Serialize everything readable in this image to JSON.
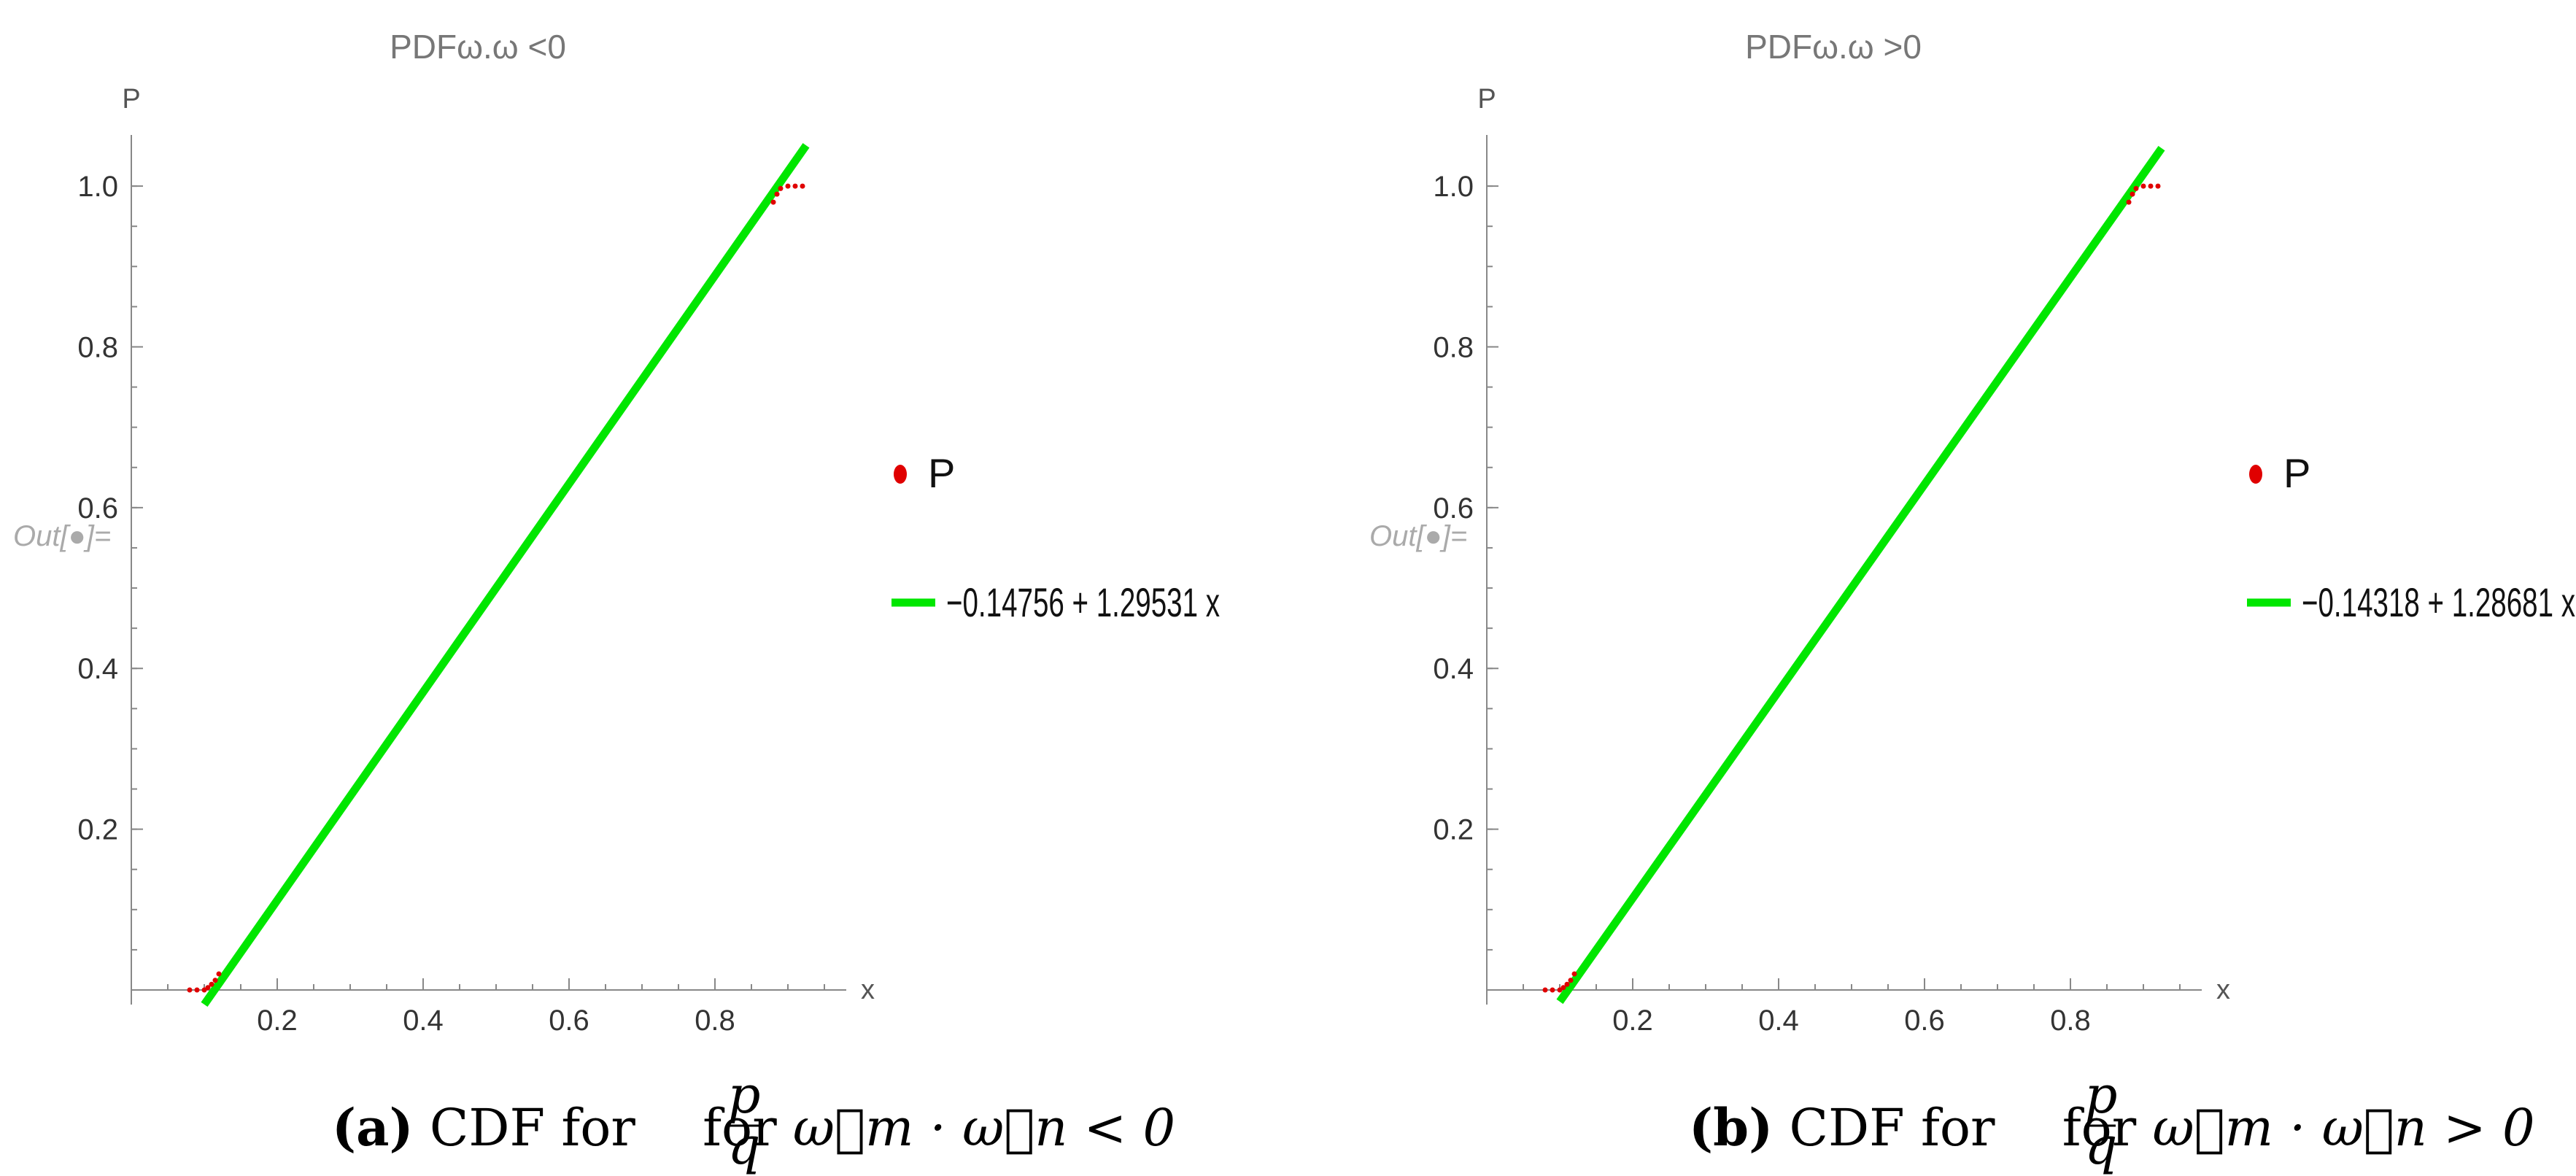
{
  "colors": {
    "points": "#e00000",
    "fit_line": "#00e600",
    "axis": "#888888"
  },
  "chart_data": [
    {
      "type": "line",
      "title": "PDFω.ω <0",
      "ylabel": "P",
      "xlabel": "x",
      "out_label": "Out[●]=",
      "xlim": [
        0.0,
        0.97
      ],
      "ylim": [
        0.0,
        1.05
      ],
      "x_ticks": [
        {
          "value": 0.2,
          "label": "0.2"
        },
        {
          "value": 0.4,
          "label": "0.4"
        },
        {
          "value": 0.6,
          "label": "0.6"
        },
        {
          "value": 0.8,
          "label": "0.8"
        }
      ],
      "y_ticks": [
        {
          "value": 0.2,
          "label": "0.2"
        },
        {
          "value": 0.4,
          "label": "0.4"
        },
        {
          "value": 0.6,
          "label": "0.6"
        },
        {
          "value": 0.8,
          "label": "0.8"
        },
        {
          "value": 1.0,
          "label": "1.0"
        }
      ],
      "series": [
        {
          "name": "P",
          "kind": "points",
          "color": "#e00000",
          "x": [
            0.08,
            0.09,
            0.1,
            0.105,
            0.11,
            0.115,
            0.12,
            0.88,
            0.885,
            0.89,
            0.9,
            0.91,
            0.92
          ],
          "y": [
            0.0,
            0.0,
            0.0,
            0.003,
            0.007,
            0.012,
            0.02,
            0.98,
            0.99,
            0.997,
            1.0,
            1.0,
            1.0
          ]
        },
        {
          "name": "-0.14756 + 1.29531 x",
          "kind": "line",
          "color": "#00e600",
          "intercept": -0.14756,
          "slope": 1.29531,
          "x_range": [
            0.1,
            0.925
          ]
        }
      ]
    },
    {
      "type": "line",
      "title": "PDFω.ω >0",
      "ylabel": "P",
      "xlabel": "x",
      "out_label": "Out[●]=",
      "xlim": [
        0.0,
        0.97
      ],
      "ylim": [
        0.0,
        1.05
      ],
      "x_ticks": [
        {
          "value": 0.2,
          "label": "0.2"
        },
        {
          "value": 0.4,
          "label": "0.4"
        },
        {
          "value": 0.6,
          "label": "0.6"
        },
        {
          "value": 0.8,
          "label": "0.8"
        }
      ],
      "y_ticks": [
        {
          "value": 0.2,
          "label": "0.2"
        },
        {
          "value": 0.4,
          "label": "0.4"
        },
        {
          "value": 0.6,
          "label": "0.6"
        },
        {
          "value": 0.8,
          "label": "0.8"
        },
        {
          "value": 1.0,
          "label": "1.0"
        }
      ],
      "series": [
        {
          "name": "P",
          "kind": "points",
          "color": "#e00000",
          "x": [
            0.08,
            0.09,
            0.1,
            0.105,
            0.11,
            0.115,
            0.12,
            0.88,
            0.885,
            0.89,
            0.9,
            0.91,
            0.92
          ],
          "y": [
            0.0,
            0.0,
            0.0,
            0.003,
            0.007,
            0.012,
            0.02,
            0.98,
            0.99,
            0.997,
            1.0,
            1.0,
            1.0
          ]
        },
        {
          "name": "-0.14318 + 1.28681 x",
          "kind": "line",
          "color": "#00e600",
          "intercept": -0.14318,
          "slope": 1.28681,
          "x_range": [
            0.1,
            0.925
          ]
        }
      ]
    }
  ],
  "captions": [
    {
      "tag": "(a)",
      "text_before": " CDF for ",
      "frac_num": "p",
      "frac_den": "q",
      "text_mid": " for ",
      "expr": "ω⃗m · ω⃗n < 0"
    },
    {
      "tag": "(b)",
      "text_before": " CDF for ",
      "frac_num": "p",
      "frac_den": "q",
      "text_mid": " for ",
      "expr": "ω⃗m · ω⃗n > 0"
    }
  ]
}
